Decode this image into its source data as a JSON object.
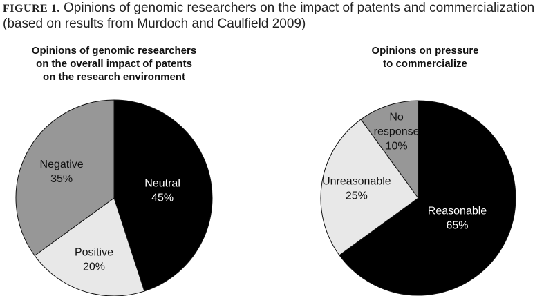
{
  "caption": {
    "label": "FIGURE 1.",
    "text": " Opinions of genomic researchers on the impact of patents and commercialization (based on results from Murdoch and Caulfield 2009)"
  },
  "chart_data": [
    {
      "type": "pie",
      "title_lines": [
        "Opinions of genomic researchers",
        "on the overall impact of patents",
        "on the research environment"
      ],
      "slices": [
        {
          "name": "Neutral",
          "value": 45,
          "label": "45%",
          "color": "#000000",
          "text_color": "#ffffff"
        },
        {
          "name": "Positive",
          "value": 20,
          "label": "20%",
          "color": "#e8e8e8",
          "text_color": "#111111"
        },
        {
          "name": "Negative",
          "value": 35,
          "label": "35%",
          "color": "#979797",
          "text_color": "#111111"
        }
      ]
    },
    {
      "type": "pie",
      "title_lines": [
        "Opinions on pressure",
        "to commercialize"
      ],
      "slices": [
        {
          "name": "Reasonable",
          "value": 65,
          "label": "65%",
          "color": "#000000",
          "text_color": "#ffffff"
        },
        {
          "name": "Unreasonable",
          "value": 25,
          "label": "25%",
          "color": "#e8e8e8",
          "text_color": "#111111"
        },
        {
          "name": "No response",
          "name_lines": [
            "No",
            "response"
          ],
          "value": 10,
          "label": "10%",
          "color": "#979797",
          "text_color": "#111111"
        }
      ]
    }
  ]
}
